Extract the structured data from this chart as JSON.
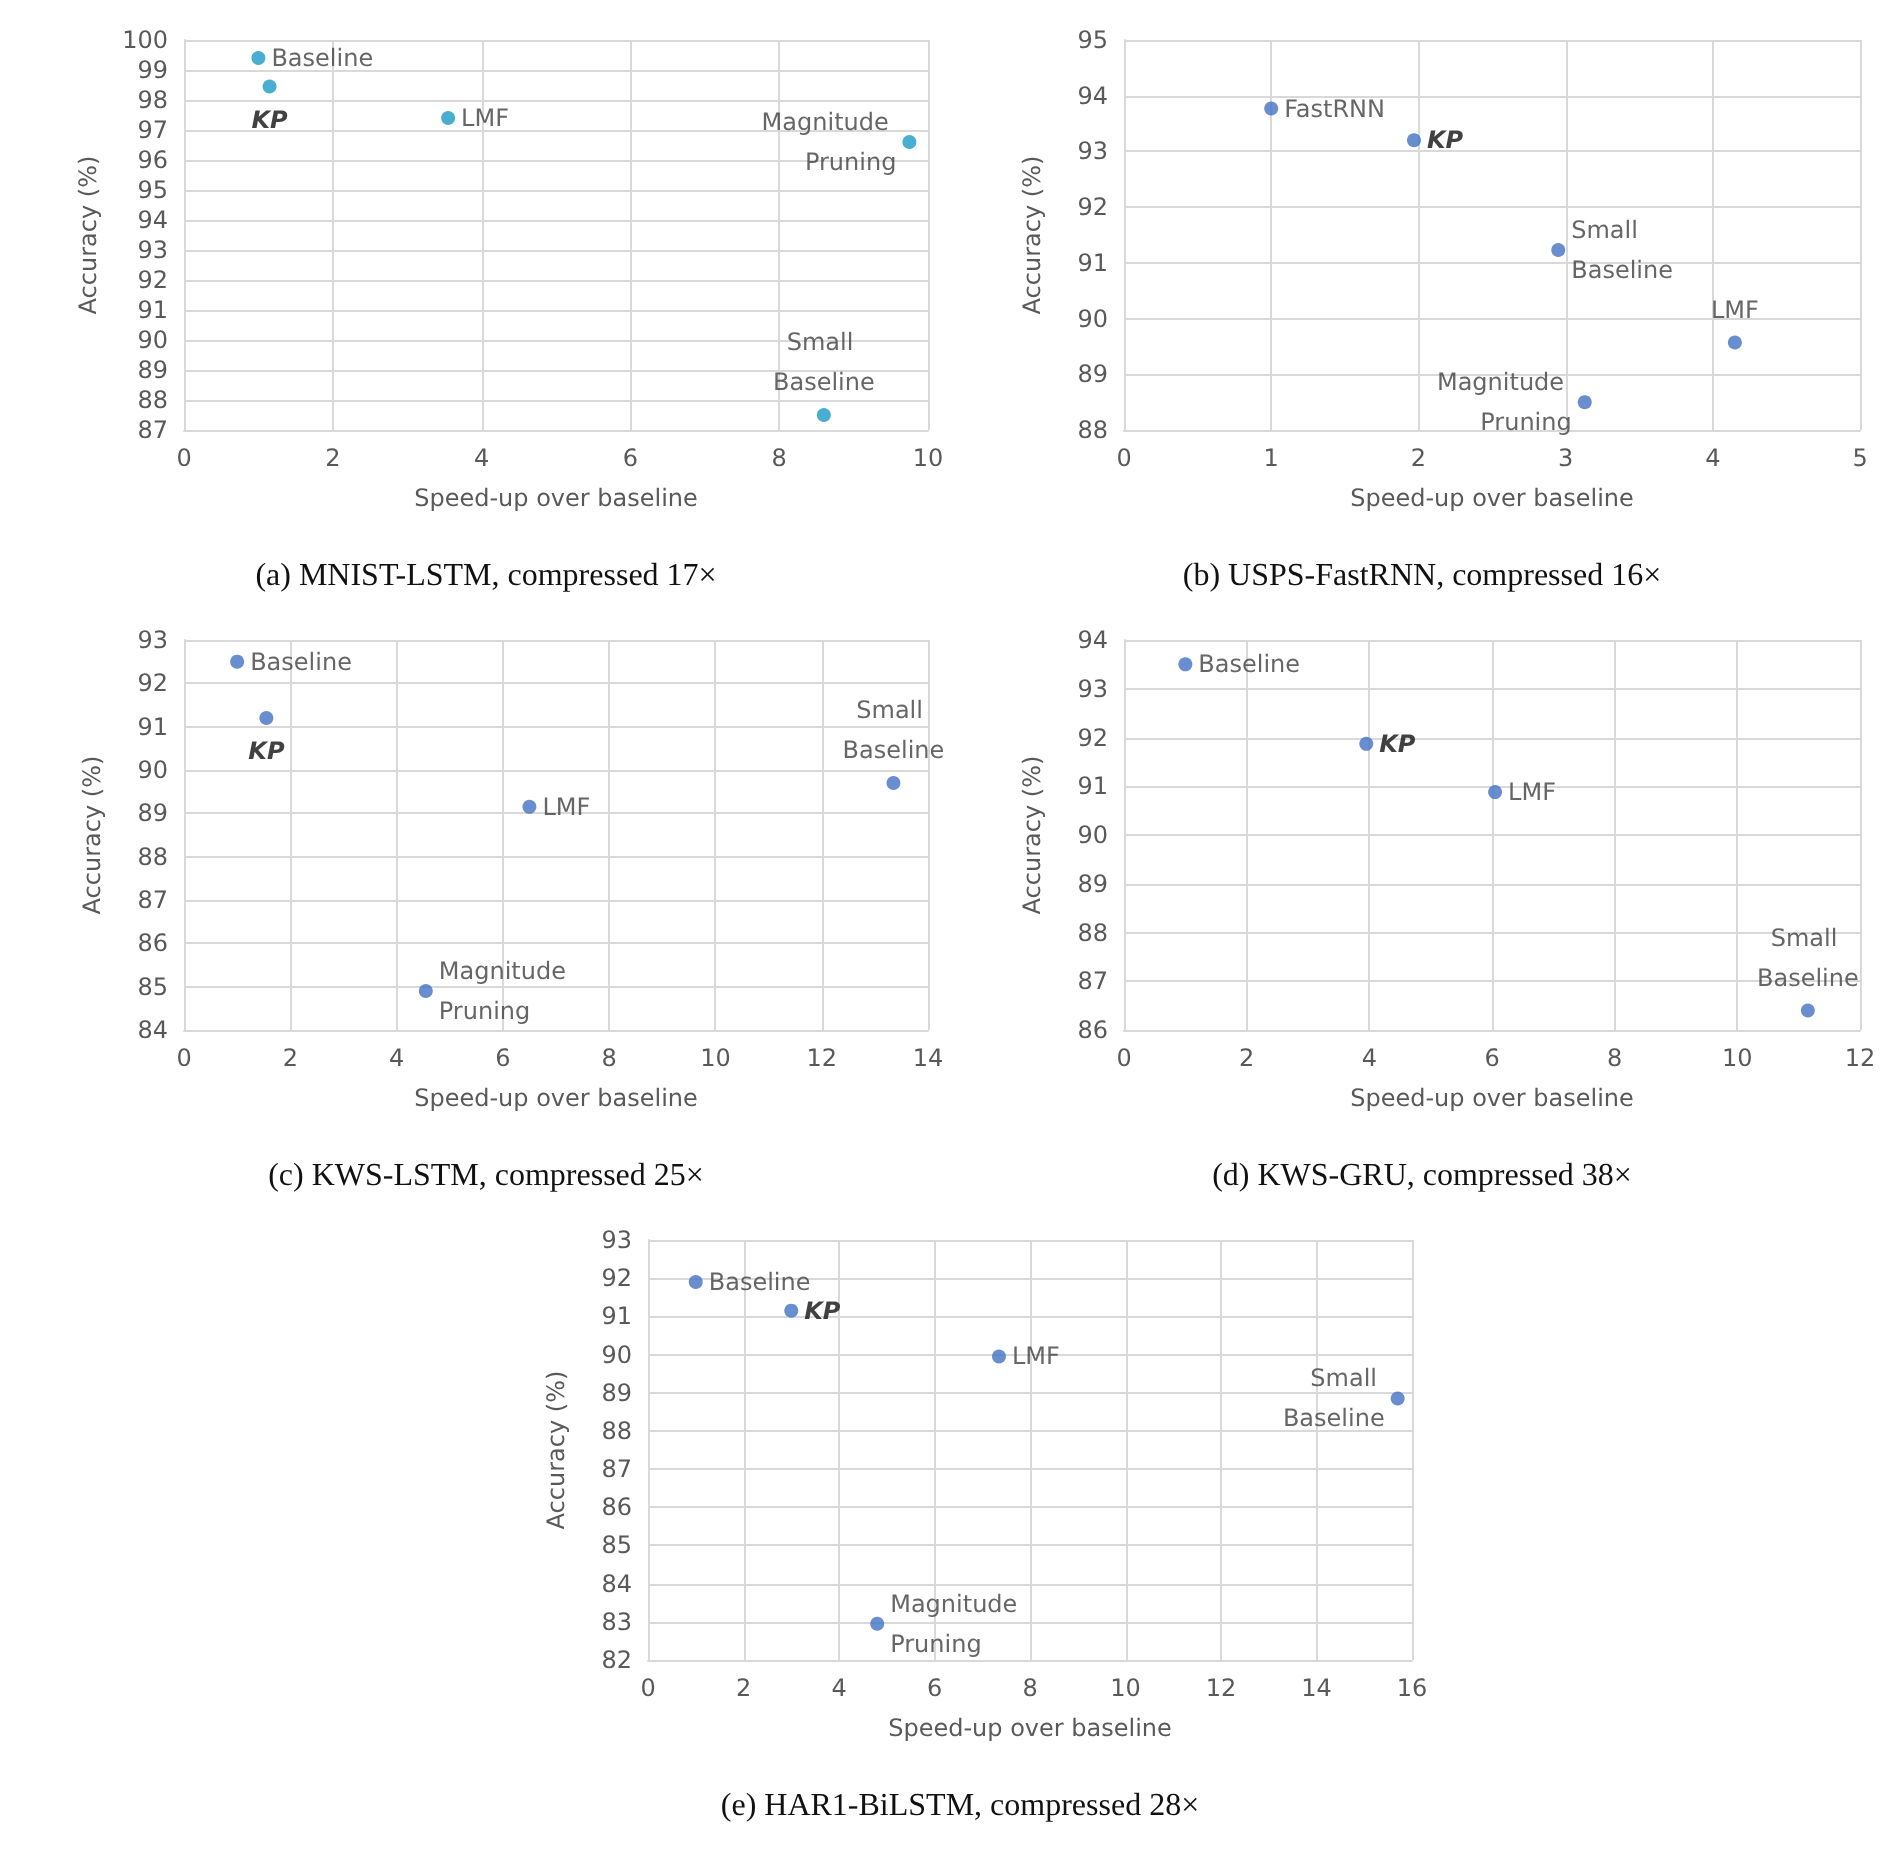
{
  "chart_data": [
    {
      "type": "scatter",
      "title": "(a) MNIST-LSTM, compressed 17×",
      "xlabel": "Speed-up over baseline",
      "ylabel": "Accuracy (%)",
      "xlim": [
        0,
        10
      ],
      "xticks": [
        0,
        2,
        4,
        6,
        8,
        10
      ],
      "ylim": [
        87,
        100
      ],
      "yticks": [
        87,
        88,
        89,
        90,
        91,
        92,
        93,
        94,
        95,
        96,
        97,
        98,
        99,
        100
      ],
      "grid": true,
      "marker": "circle",
      "series": [
        {
          "name": "Baseline",
          "color": "#1a9bc4",
          "x": [
            1.0
          ],
          "values": [
            99.4
          ]
        },
        {
          "name": "KP",
          "color": "#1a9bc4",
          "x": [
            1.15
          ],
          "values": [
            98.45
          ]
        },
        {
          "name": "LMF",
          "color": "#1a9bc4",
          "x": [
            3.55
          ],
          "values": [
            97.4
          ]
        },
        {
          "name": "Magnitude Pruning",
          "color": "#1a9bc4",
          "x": [
            9.75
          ],
          "values": [
            96.6
          ]
        },
        {
          "name": "Small Baseline",
          "color": "#1a9bc4",
          "x": [
            8.6
          ],
          "values": [
            87.5
          ]
        }
      ]
    },
    {
      "type": "scatter",
      "title": "(b) USPS-FastRNN, compressed 16×",
      "xlabel": "Speed-up over baseline",
      "ylabel": "Accuracy (%)",
      "xlim": [
        0,
        5
      ],
      "xticks": [
        0,
        1,
        2,
        3,
        4,
        5
      ],
      "ylim": [
        88,
        95
      ],
      "yticks": [
        88,
        89,
        90,
        91,
        92,
        93,
        94,
        95
      ],
      "grid": true,
      "marker": "circle",
      "series": [
        {
          "name": "FastRNN",
          "color": "#4472c4",
          "x": [
            1.0
          ],
          "values": [
            93.77
          ]
        },
        {
          "name": "KP",
          "color": "#4472c4",
          "x": [
            1.97
          ],
          "values": [
            93.2
          ]
        },
        {
          "name": "Small Baseline",
          "color": "#4472c4",
          "x": [
            2.95
          ],
          "values": [
            91.23
          ]
        },
        {
          "name": "LMF",
          "color": "#4472c4",
          "x": [
            4.15
          ],
          "values": [
            89.57
          ]
        },
        {
          "name": "Magnitude Pruning",
          "color": "#4472c4",
          "x": [
            3.13
          ],
          "values": [
            88.5
          ]
        }
      ]
    },
    {
      "type": "scatter",
      "title": "(c) KWS-LSTM, compressed 25×",
      "xlabel": "Speed-up over baseline",
      "ylabel": "Accuracy (%)",
      "xlim": [
        0,
        14
      ],
      "xticks": [
        0,
        2,
        4,
        6,
        8,
        10,
        12,
        14
      ],
      "ylim": [
        84,
        93
      ],
      "yticks": [
        84,
        85,
        86,
        87,
        88,
        89,
        90,
        91,
        92,
        93
      ],
      "grid": true,
      "marker": "circle",
      "series": [
        {
          "name": "Baseline",
          "color": "#4472c4",
          "x": [
            1.0
          ],
          "values": [
            92.5
          ]
        },
        {
          "name": "KP",
          "color": "#4472c4",
          "x": [
            1.55
          ],
          "values": [
            91.2
          ]
        },
        {
          "name": "LMF",
          "color": "#4472c4",
          "x": [
            6.5
          ],
          "values": [
            89.15
          ]
        },
        {
          "name": "Small Baseline",
          "color": "#4472c4",
          "x": [
            13.35
          ],
          "values": [
            89.7
          ]
        },
        {
          "name": "Magnitude Pruning",
          "color": "#4472c4",
          "x": [
            4.55
          ],
          "values": [
            84.9
          ]
        }
      ]
    },
    {
      "type": "scatter",
      "title": "(d) KWS-GRU, compressed 38×",
      "xlabel": "Speed-up over baseline",
      "ylabel": "Accuracy (%)",
      "xlim": [
        0,
        12
      ],
      "xticks": [
        0,
        2,
        4,
        6,
        8,
        10,
        12
      ],
      "ylim": [
        86,
        94
      ],
      "yticks": [
        86,
        87,
        88,
        89,
        90,
        91,
        92,
        93,
        94
      ],
      "grid": true,
      "marker": "circle",
      "series": [
        {
          "name": "Baseline",
          "color": "#4472c4",
          "x": [
            1.0
          ],
          "values": [
            93.5
          ]
        },
        {
          "name": "KP",
          "color": "#4472c4",
          "x": [
            3.95
          ],
          "values": [
            91.87
          ]
        },
        {
          "name": "LMF",
          "color": "#4472c4",
          "x": [
            6.05
          ],
          "values": [
            90.88
          ]
        },
        {
          "name": "Small Baseline",
          "color": "#4472c4",
          "x": [
            11.15
          ],
          "values": [
            86.4
          ]
        }
      ]
    },
    {
      "type": "scatter",
      "title": "(e) HAR1-BiLSTM, compressed 28×",
      "xlabel": "Speed-up over baseline",
      "ylabel": "Accuracy (%)",
      "xlim": [
        0,
        16
      ],
      "xticks": [
        0,
        2,
        4,
        6,
        8,
        10,
        12,
        14,
        16
      ],
      "ylim": [
        82,
        93
      ],
      "yticks": [
        82,
        83,
        84,
        85,
        86,
        87,
        88,
        89,
        90,
        91,
        92,
        93
      ],
      "grid": true,
      "marker": "circle",
      "series": [
        {
          "name": "Baseline",
          "color": "#4472c4",
          "x": [
            1.0
          ],
          "values": [
            91.9
          ]
        },
        {
          "name": "KP",
          "color": "#4472c4",
          "x": [
            3.0
          ],
          "values": [
            91.15
          ]
        },
        {
          "name": "LMF",
          "color": "#4472c4",
          "x": [
            7.35
          ],
          "values": [
            89.95
          ]
        },
        {
          "name": "Small Baseline",
          "color": "#4472c4",
          "x": [
            15.7
          ],
          "values": [
            88.85
          ]
        },
        {
          "name": "Magnitude Pruning",
          "color": "#4472c4",
          "x": [
            4.8
          ],
          "values": [
            82.95
          ]
        }
      ]
    }
  ]
}
